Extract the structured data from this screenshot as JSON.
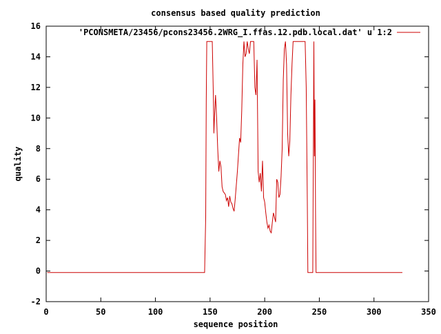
{
  "chart_data": {
    "type": "line",
    "title": "consensus based quality prediction",
    "xlabel": "sequence position",
    "ylabel": "quality",
    "xlim": [
      0,
      350
    ],
    "ylim": [
      -2,
      16
    ],
    "x_ticks": [
      0,
      50,
      100,
      150,
      200,
      250,
      300,
      350
    ],
    "y_ticks": [
      -2,
      0,
      2,
      4,
      6,
      8,
      10,
      12,
      14,
      16
    ],
    "grid": false,
    "legend_position": "top-right",
    "series": [
      {
        "name": "'PCONSMETA/23456/pcons23456.2WRG_I.ffas.12.pdb.local.dat' u 1:2",
        "color": "#cc0000",
        "points": [
          [
            1,
            -0.1
          ],
          [
            145,
            -0.1
          ],
          [
            146,
            3.5
          ],
          [
            146.5,
            11
          ],
          [
            147,
            15
          ],
          [
            148,
            15
          ],
          [
            149,
            15
          ],
          [
            150,
            15
          ],
          [
            151,
            15
          ],
          [
            152,
            15
          ],
          [
            153,
            11.5
          ],
          [
            153.5,
            9
          ],
          [
            154,
            10
          ],
          [
            155,
            11.5
          ],
          [
            156,
            10
          ],
          [
            157,
            8
          ],
          [
            158,
            6.5
          ],
          [
            159,
            7.2
          ],
          [
            160,
            6.8
          ],
          [
            161,
            5.5
          ],
          [
            162,
            5.2
          ],
          [
            163,
            5.1
          ],
          [
            164,
            5.0
          ],
          [
            165,
            4.6
          ],
          [
            166,
            4.8
          ],
          [
            167,
            4.2
          ],
          [
            168,
            4.9
          ],
          [
            169,
            4.5
          ],
          [
            170,
            4.4
          ],
          [
            171,
            4.1
          ],
          [
            172,
            3.9
          ],
          [
            173,
            4.7
          ],
          [
            174,
            5.6
          ],
          [
            175,
            6.5
          ],
          [
            176,
            7.6
          ],
          [
            177,
            8.7
          ],
          [
            178,
            8.4
          ],
          [
            179,
            10.5
          ],
          [
            180,
            13.5
          ],
          [
            181,
            15.0
          ],
          [
            182,
            14.0
          ],
          [
            183,
            14.2
          ],
          [
            184,
            15.0
          ],
          [
            185,
            14.5
          ],
          [
            186,
            14.2
          ],
          [
            187,
            15.0
          ],
          [
            188,
            15.0
          ],
          [
            189,
            15.0
          ],
          [
            190,
            15.0
          ],
          [
            191,
            12.0
          ],
          [
            192,
            11.5
          ],
          [
            193,
            13.8
          ],
          [
            194,
            6.5
          ],
          [
            195,
            5.8
          ],
          [
            196,
            6.4
          ],
          [
            197,
            5.2
          ],
          [
            198,
            7.2
          ],
          [
            199,
            4.8
          ],
          [
            200,
            4.5
          ],
          [
            201,
            3.8
          ],
          [
            202,
            3.2
          ],
          [
            203,
            2.8
          ],
          [
            204,
            3.0
          ],
          [
            205,
            2.6
          ],
          [
            206,
            2.5
          ],
          [
            207,
            3.2
          ],
          [
            208,
            3.8
          ],
          [
            209,
            3.5
          ],
          [
            210,
            3.2
          ],
          [
            211,
            6.0
          ],
          [
            212,
            5.8
          ],
          [
            213,
            4.8
          ],
          [
            214,
            5.0
          ],
          [
            215,
            6.2
          ],
          [
            216,
            8.0
          ],
          [
            217,
            12.5
          ],
          [
            218,
            14.5
          ],
          [
            219,
            15.0
          ],
          [
            220,
            13.5
          ],
          [
            221,
            9.0
          ],
          [
            222,
            7.5
          ],
          [
            223,
            8.5
          ],
          [
            224,
            11.5
          ],
          [
            225,
            13.5
          ],
          [
            226,
            15.0
          ],
          [
            227,
            15.0
          ],
          [
            228,
            15.0
          ],
          [
            229,
            15.0
          ],
          [
            230,
            15.0
          ],
          [
            231,
            15.0
          ],
          [
            232,
            15.0
          ],
          [
            233,
            15.0
          ],
          [
            234,
            15.0
          ],
          [
            235,
            15.0
          ],
          [
            236,
            15.0
          ],
          [
            237,
            15.0
          ],
          [
            238,
            12.0
          ],
          [
            239,
            4.5
          ],
          [
            239.5,
            -0.1
          ],
          [
            240,
            -0.1
          ],
          [
            244,
            -0.1
          ],
          [
            245,
            15.0
          ],
          [
            245.5,
            7.5
          ],
          [
            246,
            11.2
          ],
          [
            246.5,
            4.0
          ],
          [
            247,
            -0.1
          ],
          [
            326,
            -0.1
          ]
        ]
      }
    ]
  }
}
